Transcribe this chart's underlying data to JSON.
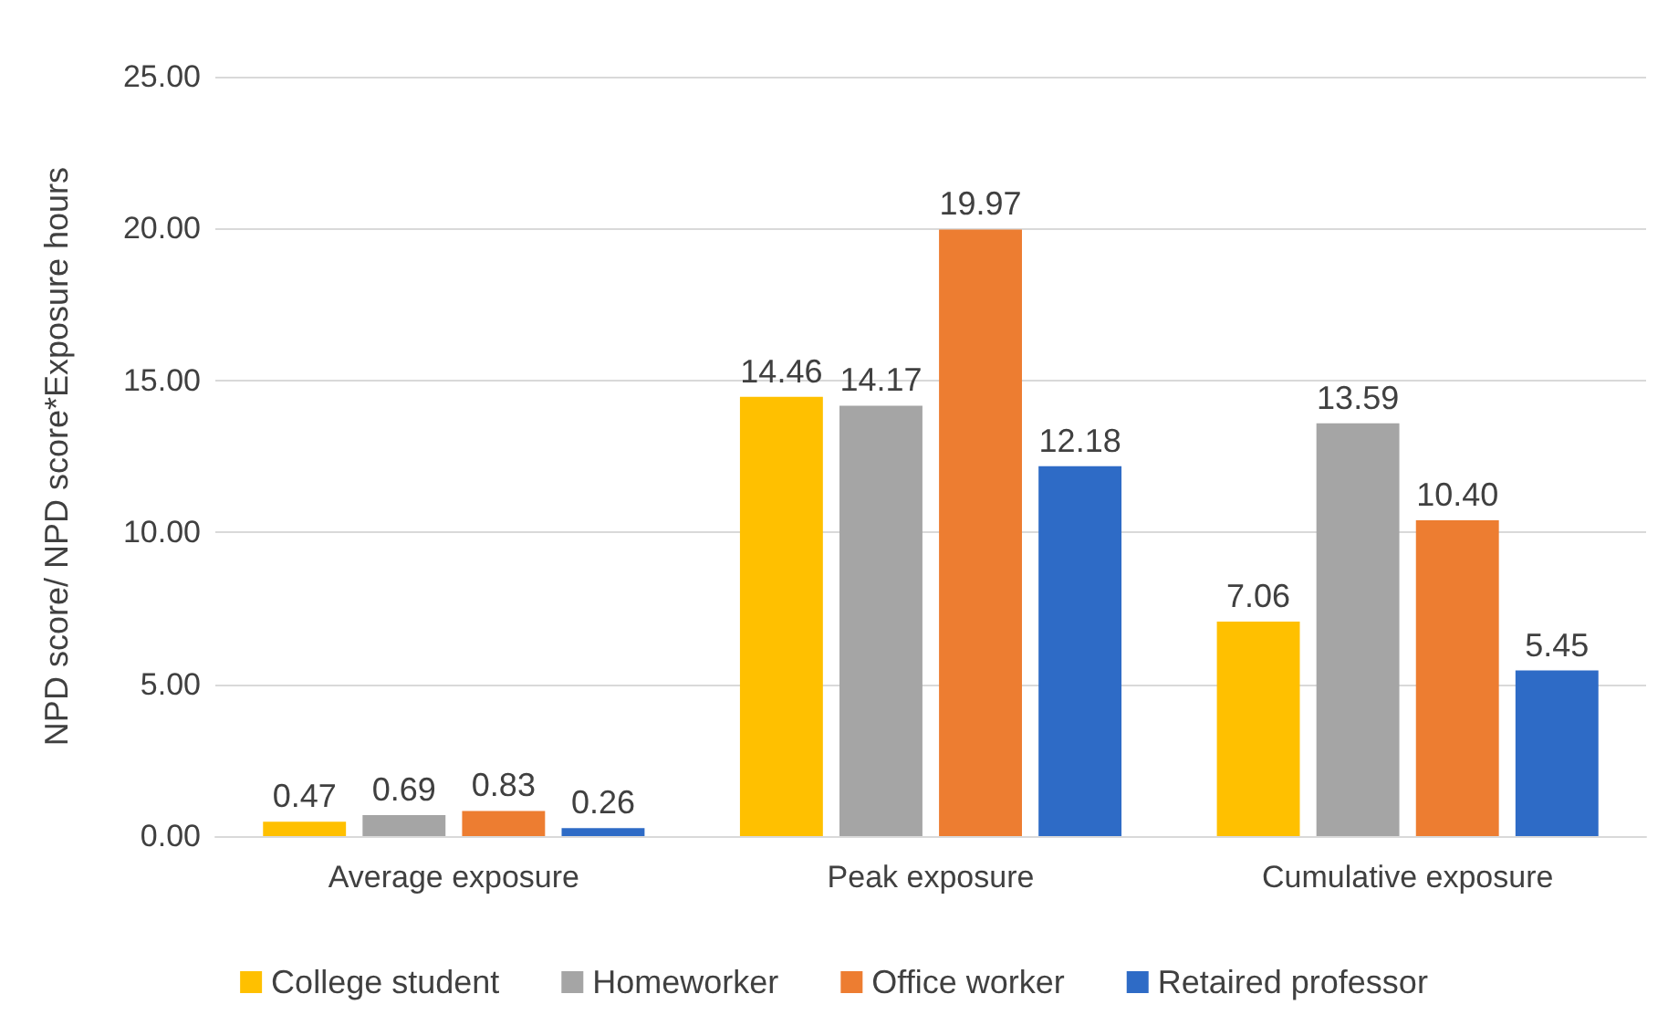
{
  "chart_data": {
    "type": "bar",
    "ylabel": "NPD score/ NPD score*Exposure hours",
    "categories": [
      "Average exposure",
      "Peak exposure",
      "Cumulative exposure"
    ],
    "series": [
      {
        "name": "College student",
        "color": "#ffc000",
        "values": [
          0.47,
          14.46,
          7.06
        ],
        "value_labels": [
          "0.47",
          "14.46",
          "7.06"
        ]
      },
      {
        "name": "Homeworker",
        "color": "#a5a5a5",
        "values": [
          0.69,
          14.17,
          13.59
        ],
        "value_labels": [
          "0.69",
          "14.17",
          "13.59"
        ]
      },
      {
        "name": "Office worker",
        "color": "#ed7d31",
        "values": [
          0.83,
          19.97,
          10.4
        ],
        "value_labels": [
          "0.83",
          "19.97",
          "10.40"
        ]
      },
      {
        "name": "Retaired professor",
        "color": "#2e6bc6",
        "values": [
          0.26,
          12.18,
          5.45
        ],
        "value_labels": [
          "0.26",
          "12.18",
          "5.45"
        ]
      }
    ],
    "ylim": [
      0,
      25
    ],
    "yticks": [
      {
        "value": 0,
        "label": "0.00"
      },
      {
        "value": 5,
        "label": "5.00"
      },
      {
        "value": 10,
        "label": "10.00"
      },
      {
        "value": 15,
        "label": "15.00"
      },
      {
        "value": 20,
        "label": "20.00"
      },
      {
        "value": 25,
        "label": "25.00"
      }
    ],
    "grid": "y",
    "legend": "bottom"
  }
}
